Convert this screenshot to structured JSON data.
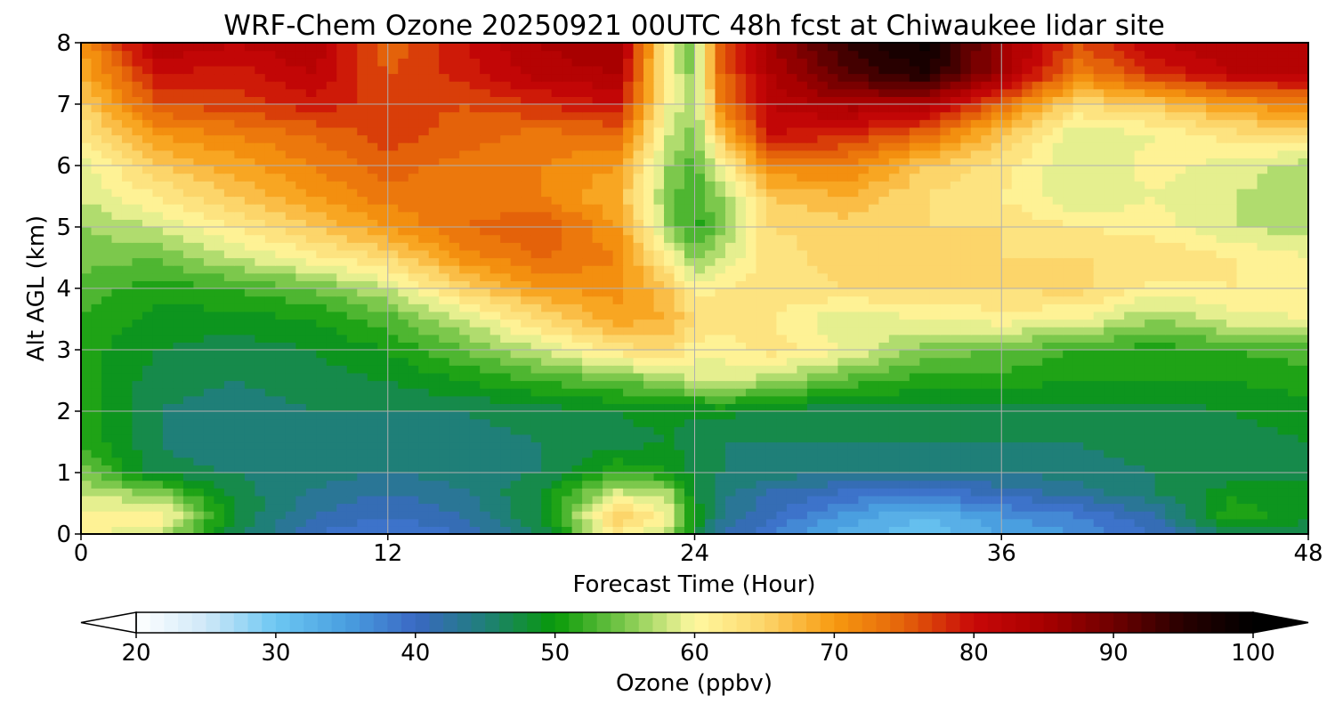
{
  "chart_data": {
    "type": "heatmap",
    "title": "WRF-Chem Ozone  20250921 00UTC 48h fcst at Chiwaukee lidar site",
    "xlabel": "Forecast Time (Hour)",
    "ylabel": "Alt AGL (km)",
    "xlim": [
      0,
      48
    ],
    "ylim": [
      0,
      8
    ],
    "x_ticks": [
      0,
      12,
      24,
      36,
      48
    ],
    "y_ticks": [
      0,
      1,
      2,
      3,
      4,
      5,
      6,
      7,
      8
    ],
    "grid": true,
    "colorbar": {
      "label": "Ozone  (ppbv)",
      "orientation": "horizontal",
      "location": "bottom",
      "min": 20,
      "max": 100,
      "ticks": [
        20,
        30,
        40,
        50,
        60,
        70,
        80,
        90,
        100
      ],
      "extend": "both",
      "colors": {
        "20": "#ffffff",
        "25": "#cfe8f8",
        "30": "#6cc7f2",
        "35": "#4a9fe0",
        "40": "#3a68c4",
        "45": "#1f7f78",
        "50": "#089a08",
        "55": "#7cc84c",
        "60": "#fff9a0",
        "65": "#fcd56a",
        "70": "#f79a10",
        "75": "#e4620a",
        "80": "#c80808",
        "85": "#a80000",
        "90": "#6e0000",
        "95": "#280000",
        "100": "#000000"
      }
    },
    "x": [
      0,
      3,
      6,
      9,
      12,
      15,
      18,
      21,
      23,
      24,
      25,
      27,
      30,
      33,
      36,
      39,
      42,
      45,
      48
    ],
    "y": [
      0,
      0.3,
      0.7,
      1,
      1.5,
      2,
      2.5,
      3,
      3.5,
      4,
      4.5,
      5,
      5.5,
      6,
      6.5,
      7,
      7.5,
      8
    ],
    "z": [
      [
        61,
        58,
        47,
        40,
        38,
        40,
        46,
        62,
        57,
        48,
        42,
        38,
        33,
        30,
        34,
        36,
        40,
        46,
        47
      ],
      [
        60,
        62,
        48,
        42,
        40,
        42,
        48,
        66,
        60,
        50,
        44,
        40,
        35,
        32,
        36,
        38,
        42,
        52,
        48
      ],
      [
        58,
        55,
        47,
        44,
        42,
        44,
        48,
        58,
        56,
        48,
        45,
        42,
        40,
        39,
        41,
        43,
        46,
        49,
        48
      ],
      [
        55,
        47,
        46,
        45,
        44,
        45,
        46,
        52,
        50,
        47,
        46,
        45,
        44,
        44,
        44,
        45,
        46,
        47,
        48
      ],
      [
        52,
        46,
        44,
        45,
        45,
        45,
        46,
        47,
        48,
        47,
        46,
        46,
        46,
        46,
        46,
        46,
        47,
        47,
        48
      ],
      [
        51,
        46,
        45,
        46,
        46,
        46,
        47,
        48,
        49,
        48,
        49,
        47,
        47,
        47,
        47,
        47,
        47,
        48,
        49
      ],
      [
        51,
        47,
        46,
        47,
        48,
        50,
        52,
        54,
        56,
        58,
        58,
        57,
        53,
        51,
        51,
        50,
        50,
        50,
        51
      ],
      [
        51,
        48,
        47,
        48,
        50,
        54,
        58,
        63,
        64,
        61,
        61,
        63,
        60,
        55,
        54,
        52,
        51,
        52,
        53
      ],
      [
        52,
        49,
        49,
        50,
        53,
        58,
        64,
        69,
        68,
        64,
        63,
        62,
        58,
        60,
        61,
        60,
        56,
        59,
        60
      ],
      [
        53,
        51,
        52,
        54,
        58,
        65,
        70,
        71,
        66,
        61,
        62,
        63,
        64,
        64,
        64,
        65,
        61,
        62,
        62
      ],
      [
        55,
        54,
        58,
        61,
        64,
        71,
        74,
        72,
        61,
        55,
        58,
        63,
        65,
        64,
        64,
        64,
        64,
        62,
        60
      ],
      [
        56,
        58,
        62,
        66,
        70,
        74,
        76,
        70,
        56,
        51,
        55,
        64,
        65,
        64,
        64,
        62,
        61,
        58,
        57
      ],
      [
        58,
        62,
        66,
        70,
        73,
        73,
        72,
        68,
        55,
        52,
        56,
        66,
        68,
        64,
        62,
        58,
        60,
        58,
        57
      ],
      [
        59,
        66,
        69,
        72,
        75,
        73,
        72,
        70,
        56,
        53,
        60,
        72,
        72,
        66,
        63,
        58,
        61,
        59,
        57
      ],
      [
        62,
        70,
        72,
        74,
        77,
        75,
        73,
        74,
        58,
        55,
        66,
        80,
        78,
        74,
        66,
        58,
        60,
        63,
        64
      ],
      [
        65,
        76,
        77,
        79,
        77,
        76,
        78,
        80,
        60,
        56,
        72,
        82,
        85,
        84,
        74,
        64,
        66,
        70,
        72
      ],
      [
        68,
        80,
        79,
        82,
        76,
        79,
        83,
        84,
        60,
        55,
        74,
        84,
        92,
        96,
        86,
        72,
        78,
        82,
        82
      ],
      [
        70,
        84,
        82,
        84,
        74,
        80,
        84,
        86,
        60,
        54,
        76,
        86,
        94,
        99,
        86,
        76,
        82,
        84,
        84
      ]
    ]
  }
}
